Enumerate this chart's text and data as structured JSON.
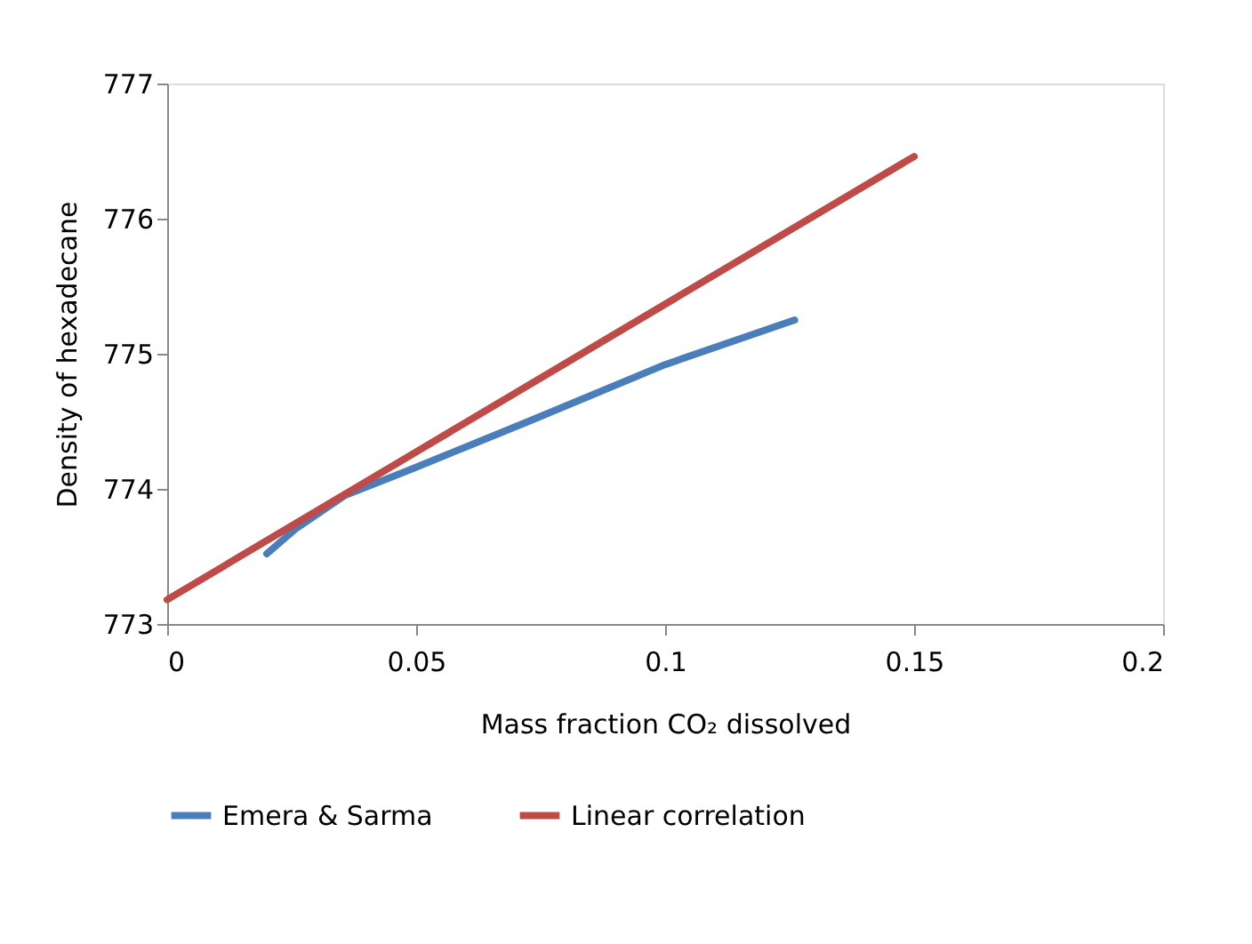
{
  "chart_data": {
    "type": "line",
    "xlabel": "Mass fraction CO₂ dissolved",
    "ylabel": "Density of hexadecane",
    "xlim": [
      0,
      0.2
    ],
    "xticks": [
      0,
      0.05,
      0.1,
      0.15,
      0.2
    ],
    "ylim": [
      773,
      777
    ],
    "yticks": [
      773,
      774,
      775,
      776,
      777
    ],
    "grid": false,
    "legend": "bottom",
    "marker": "none",
    "line_style": "solid",
    "series": [
      {
        "name": "Emera & Sarma",
        "color": "#4a7ebb",
        "x": [
          0.02,
          0.026,
          0.0356,
          0.0493,
          0.0726,
          0.1,
          0.126
        ],
        "values": [
          773.52,
          773.71,
          773.95,
          774.15,
          774.5,
          774.92,
          775.25
        ]
      },
      {
        "name": "Linear correlation",
        "color": "#be4b48",
        "x": [
          0,
          0.15
        ],
        "values": [
          773.18,
          776.46
        ]
      }
    ]
  }
}
